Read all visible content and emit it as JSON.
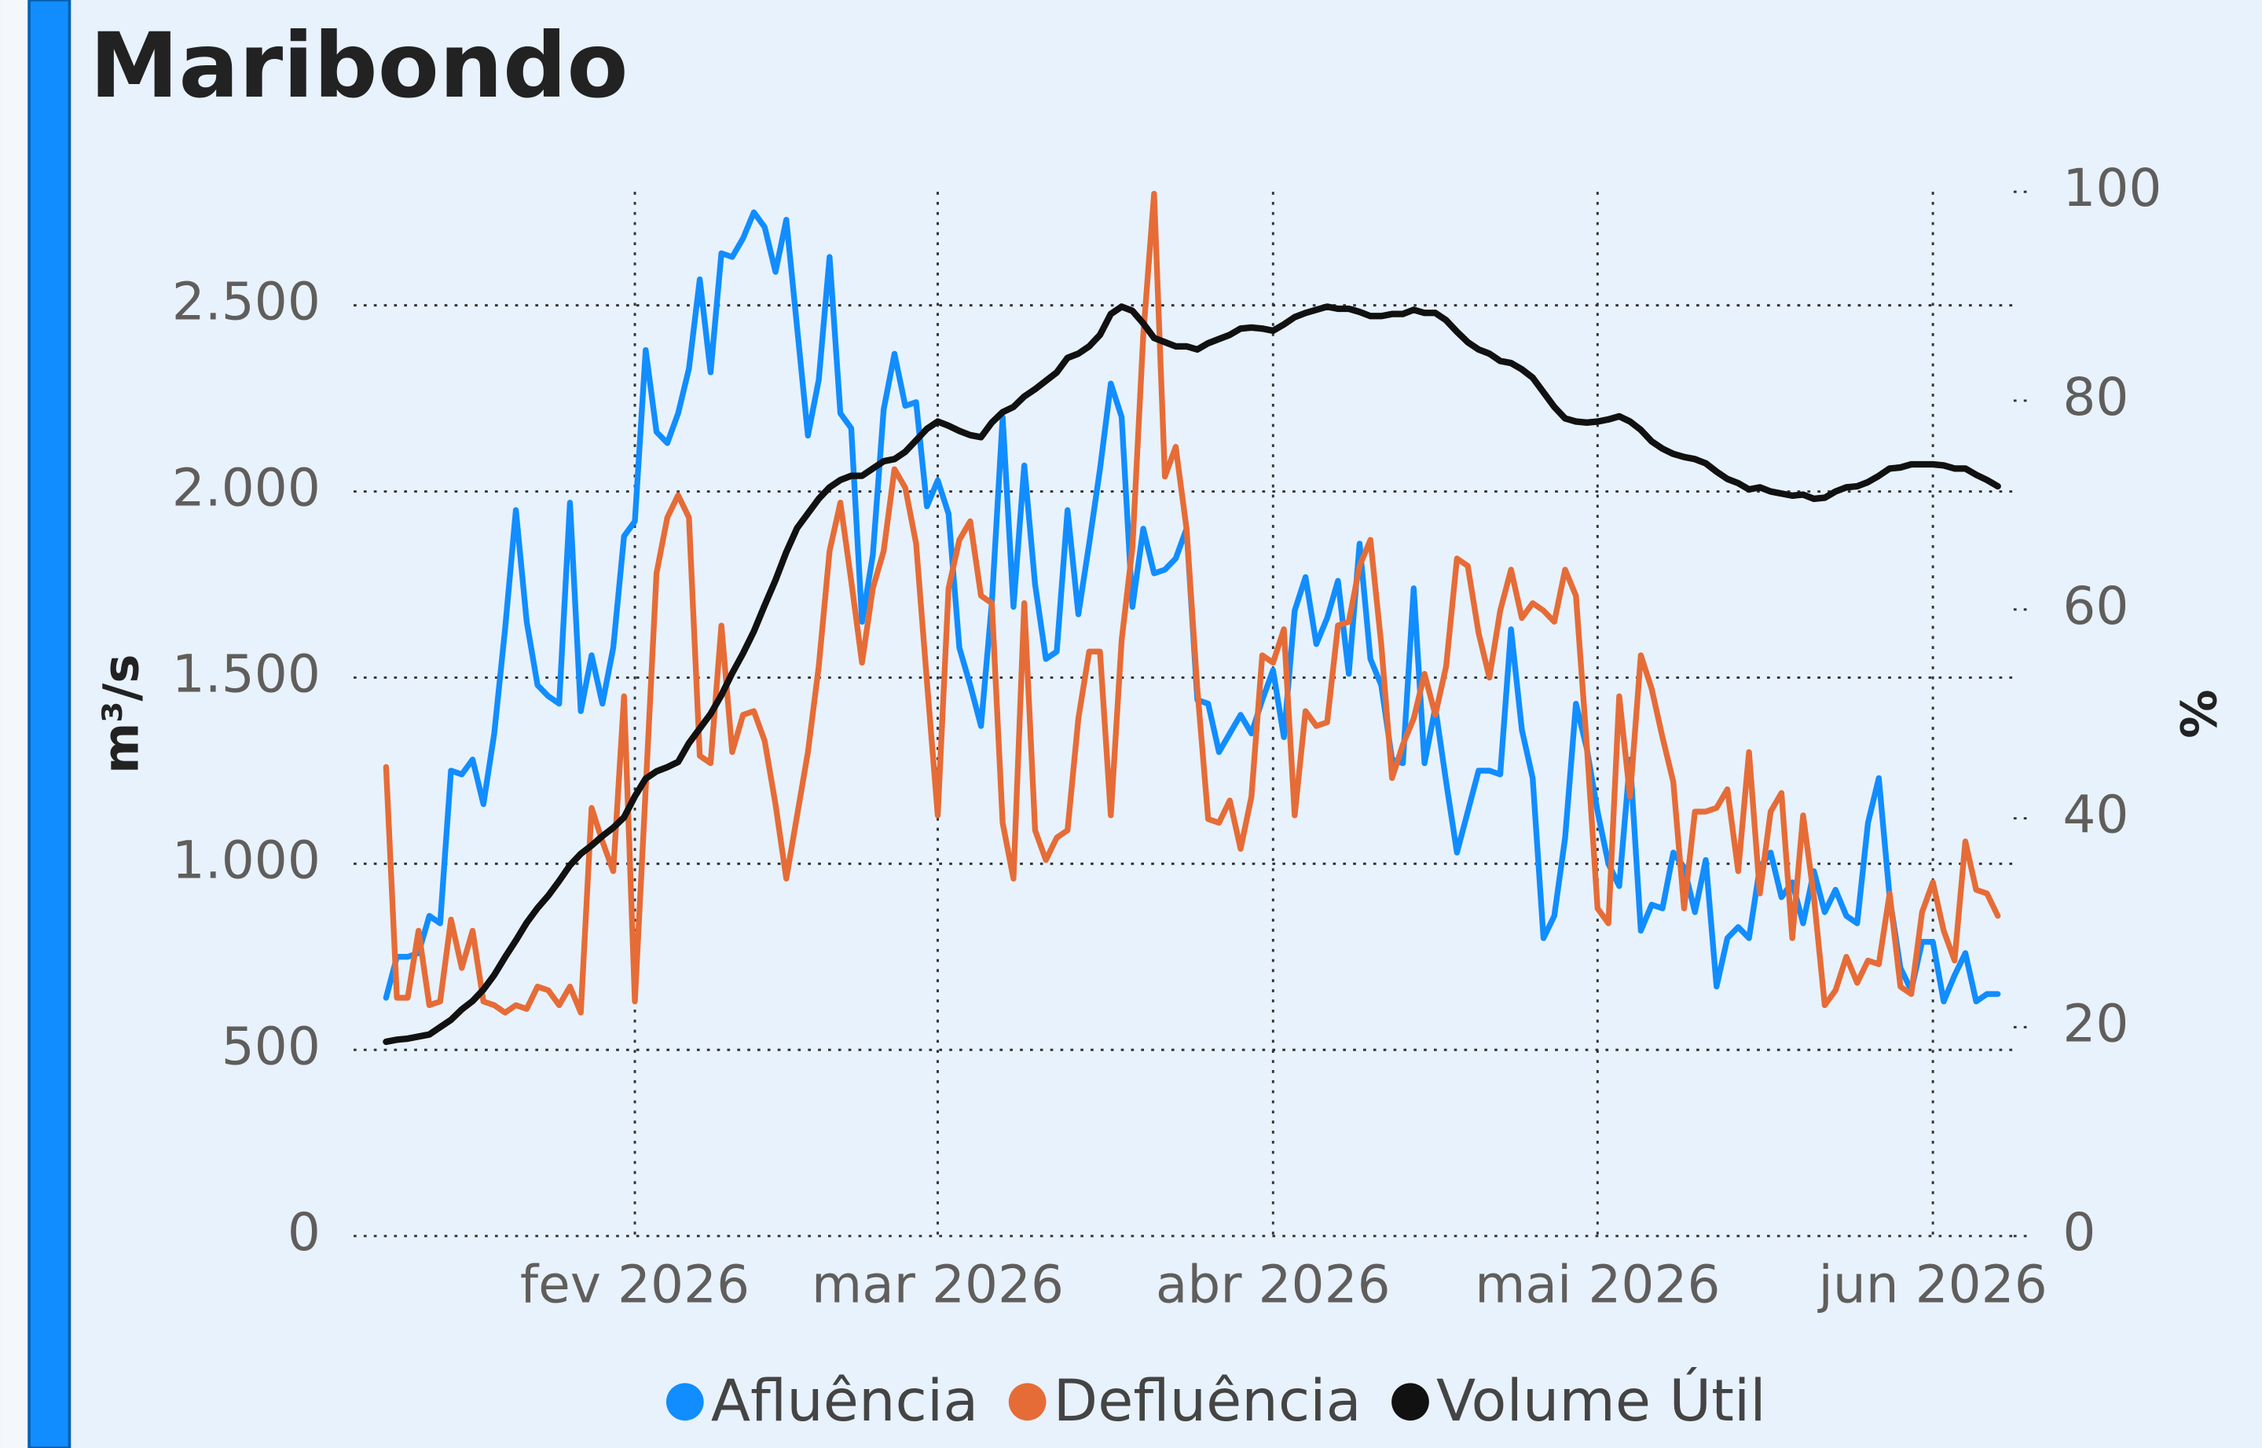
{
  "chart_data": {
    "type": "line",
    "title": "Maribondo",
    "y_label": "m³/s",
    "y2_label": "%",
    "x": [
      9,
      10,
      11,
      12,
      13,
      14,
      15,
      16,
      17,
      18,
      19,
      20,
      21,
      22,
      23,
      24,
      25,
      26,
      27,
      28,
      29,
      30,
      31,
      32,
      33,
      34,
      35,
      36,
      37,
      38,
      39,
      40,
      41,
      42,
      43,
      44,
      45,
      46,
      47,
      48,
      49,
      50,
      51,
      52,
      53,
      54,
      55,
      56,
      57,
      58,
      59,
      60,
      61,
      62,
      63,
      64,
      65,
      66,
      67,
      68,
      69,
      70,
      71,
      72,
      73,
      74,
      75,
      76,
      77,
      78,
      79,
      80,
      81,
      82,
      83,
      84,
      85,
      86,
      87,
      88,
      89,
      90,
      91,
      92,
      93,
      94,
      95,
      96,
      97,
      98,
      99,
      100,
      101,
      102,
      103,
      104,
      105,
      106,
      107,
      108,
      109,
      110,
      111,
      112,
      113,
      114,
      115,
      116,
      117,
      118,
      119,
      120,
      121,
      122,
      123,
      124,
      125,
      126,
      127,
      128,
      129,
      130,
      131,
      132,
      133,
      134,
      135,
      136,
      137,
      138,
      139,
      140,
      141,
      142,
      143,
      144,
      145,
      146,
      147,
      148,
      149,
      150,
      151,
      152,
      153,
      154,
      155,
      156,
      157,
      158
    ],
    "xlim": [
      6,
      160
    ],
    "xticks": [
      {
        "value": 32,
        "label": "fev 2026"
      },
      {
        "value": 60,
        "label": "mar 2026"
      },
      {
        "value": 91,
        "label": "abr 2026"
      },
      {
        "value": 121,
        "label": "mai 2026"
      },
      {
        "value": 152,
        "label": "jun 2026"
      }
    ],
    "ylim": [
      0,
      2805
    ],
    "yticks": [
      0,
      500,
      {
        "value": 1000,
        "label": "1.000"
      },
      {
        "value": 1500,
        "label": "1.500"
      },
      {
        "value": 2000,
        "label": "2.000"
      },
      {
        "value": 2500,
        "label": "2.500"
      }
    ],
    "y2lim": [
      0,
      100
    ],
    "y2ticks": [
      0,
      20,
      40,
      60,
      80,
      100
    ],
    "grid": true,
    "legend": "bottom",
    "series": [
      {
        "name": "Afluência",
        "color": "#118dff",
        "values": [
          640,
          750,
          750,
          760,
          860,
          840,
          1250,
          1240,
          1280,
          1160,
          1350,
          1630,
          1950,
          1650,
          1480,
          1450,
          1430,
          1970,
          1410,
          1560,
          1430,
          1580,
          1880,
          1920,
          2380,
          2160,
          2130,
          2210,
          2330,
          2570,
          2320,
          2640,
          2630,
          2680,
          2750,
          2710,
          2590,
          2730,
          2440,
          2150,
          2300,
          2630,
          2210,
          2170,
          1650,
          1830,
          2220,
          2370,
          2230,
          2240,
          1960,
          2030,
          1940,
          1580,
          1480,
          1370,
          1700,
          2200,
          1690,
          2070,
          1750,
          1550,
          1570,
          1950,
          1670,
          1860,
          2060,
          2290,
          2200,
          1690,
          1900,
          1780,
          1790,
          1820,
          1900,
          1440,
          1430,
          1300,
          1350,
          1400,
          1350,
          1440,
          1520,
          1340,
          1680,
          1770,
          1590,
          1660,
          1760,
          1510,
          1860,
          1550,
          1480,
          1280,
          1270,
          1740,
          1270,
          1420,
          1220,
          1030,
          1140,
          1250,
          1250,
          1240,
          1630,
          1360,
          1230,
          800,
          860,
          1070,
          1430,
          1310,
          1140,
          1000,
          940,
          1280,
          820,
          890,
          880,
          1030,
          990,
          870,
          1010,
          670,
          800,
          830,
          800,
          990,
          1030,
          910,
          950,
          840,
          980,
          870,
          930,
          860,
          840,
          1110,
          1230,
          910,
          720,
          660,
          790,
          790,
          630,
          700,
          760,
          630,
          650,
          650
        ]
      },
      {
        "name": "Defluência",
        "color": "#e66c37",
        "values": [
          1260,
          640,
          640,
          820,
          620,
          630,
          850,
          720,
          820,
          630,
          620,
          600,
          620,
          610,
          670,
          660,
          620,
          670,
          600,
          1150,
          1060,
          980,
          1450,
          630,
          1200,
          1780,
          1930,
          1990,
          1930,
          1290,
          1270,
          1640,
          1300,
          1400,
          1410,
          1330,
          1160,
          960,
          1130,
          1300,
          1530,
          1840,
          1970,
          1760,
          1540,
          1740,
          1840,
          2060,
          2010,
          1860,
          1490,
          1130,
          1740,
          1870,
          1920,
          1720,
          1700,
          1110,
          960,
          1700,
          1090,
          1010,
          1070,
          1090,
          1390,
          1570,
          1570,
          1130,
          1600,
          1850,
          2420,
          2800,
          2040,
          2120,
          1900,
          1470,
          1120,
          1110,
          1170,
          1040,
          1180,
          1560,
          1540,
          1630,
          1130,
          1410,
          1370,
          1380,
          1640,
          1650,
          1800,
          1870,
          1590,
          1230,
          1320,
          1390,
          1510,
          1400,
          1530,
          1820,
          1800,
          1620,
          1500,
          1680,
          1790,
          1660,
          1700,
          1680,
          1650,
          1790,
          1720,
          1320,
          880,
          840,
          1450,
          1180,
          1560,
          1470,
          1340,
          1220,
          880,
          1140,
          1140,
          1150,
          1200,
          980,
          1300,
          920,
          1140,
          1190,
          800,
          1130,
          910,
          620,
          660,
          750,
          680,
          740,
          730,
          920,
          670,
          650,
          870,
          950,
          820,
          740,
          1060,
          930,
          920,
          860
        ]
      },
      {
        "name": "Volume Útil",
        "color": "#111111",
        "axis": "y2",
        "values": [
          18.6,
          18.8,
          18.9,
          19.1,
          19.3,
          20.0,
          20.7,
          21.7,
          22.5,
          23.6,
          25.0,
          26.7,
          28.3,
          30.0,
          31.4,
          32.6,
          34.0,
          35.5,
          36.6,
          37.4,
          38.3,
          39.1,
          40.1,
          42.1,
          43.8,
          44.5,
          44.9,
          45.4,
          47.2,
          48.6,
          50.0,
          51.8,
          53.9,
          55.8,
          57.9,
          60.4,
          62.8,
          65.5,
          67.8,
          69.2,
          70.6,
          71.7,
          72.4,
          72.8,
          72.8,
          73.5,
          74.2,
          74.4,
          75.1,
          76.2,
          77.3,
          78.0,
          77.6,
          77.1,
          76.7,
          76.5,
          77.9,
          78.9,
          79.4,
          80.4,
          81.1,
          81.9,
          82.7,
          84.1,
          84.5,
          85.2,
          86.3,
          88.3,
          89.0,
          88.6,
          87.4,
          86.0,
          85.6,
          85.2,
          85.2,
          84.9,
          85.5,
          85.9,
          86.3,
          86.9,
          87.0,
          86.9,
          86.7,
          87.3,
          88.0,
          88.4,
          88.7,
          89.0,
          88.8,
          88.8,
          88.5,
          88.1,
          88.1,
          88.3,
          88.3,
          88.7,
          88.4,
          88.4,
          87.7,
          86.6,
          85.6,
          84.9,
          84.5,
          83.8,
          83.6,
          83.0,
          82.2,
          80.8,
          79.4,
          78.3,
          78.0,
          77.9,
          78.0,
          78.2,
          78.5,
          78.0,
          77.2,
          76.1,
          75.4,
          74.9,
          74.6,
          74.4,
          74.0,
          73.2,
          72.5,
          72.1,
          71.5,
          71.7,
          71.3,
          71.1,
          70.9,
          71.0,
          70.6,
          70.7,
          71.3,
          71.7,
          71.8,
          72.2,
          72.8,
          73.5,
          73.6,
          73.9,
          73.9,
          73.9,
          73.8,
          73.5,
          73.5,
          72.9,
          72.4,
          71.8
        ]
      }
    ]
  }
}
